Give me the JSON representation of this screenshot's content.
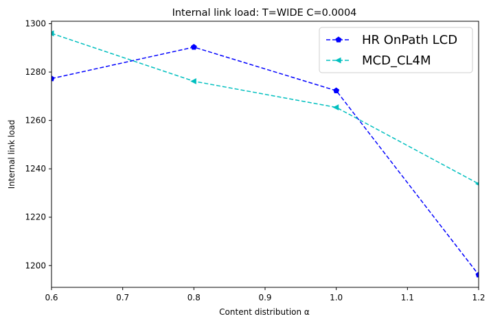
{
  "chart_data": {
    "type": "line",
    "title": "Internal link load: T=WIDE C=0.0004",
    "xlabel": "Content distribution α",
    "ylabel": "Internal link load",
    "xlim": [
      0.6,
      1.2
    ],
    "ylim": [
      1191,
      1301
    ],
    "xticks": [
      "0.6",
      "0.7",
      "0.8",
      "0.9",
      "1.0",
      "1.1",
      "1.2"
    ],
    "yticks": [
      "1200",
      "1220",
      "1240",
      "1260",
      "1280",
      "1300"
    ],
    "grid": false,
    "legend_position": "top-right",
    "x": [
      0.6,
      0.8,
      1.0,
      1.2
    ],
    "series": [
      {
        "name": "HR OnPath LCD",
        "values": [
          1277.3,
          1290.3,
          1272.3,
          1196.2
        ],
        "color": "#0000ff",
        "line_style": "dashed",
        "marker": "pentagon"
      },
      {
        "name": "MCD_CL4M",
        "values": [
          1296.0,
          1276.2,
          1265.4,
          1233.8
        ],
        "color": "#00bfbf",
        "line_style": "dashed",
        "marker": "triangle-left"
      }
    ]
  }
}
